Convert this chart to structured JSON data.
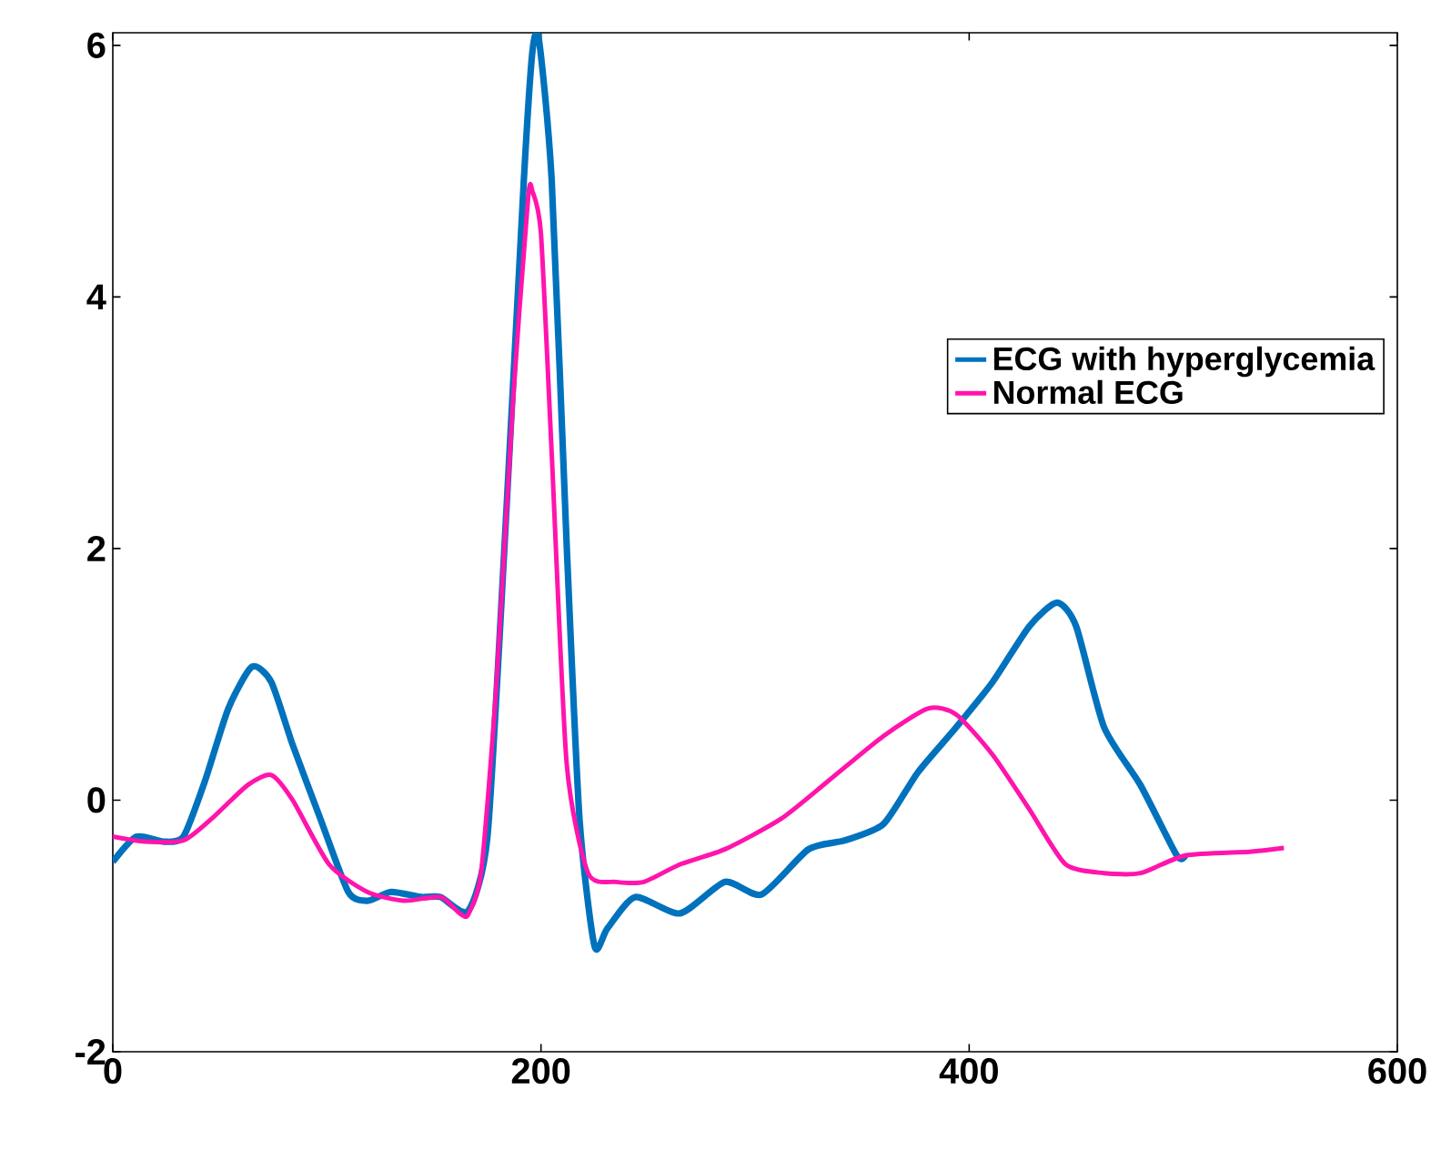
{
  "chart_data": {
    "type": "line",
    "xlim": [
      0,
      600
    ],
    "ylim": [
      -2,
      6.1
    ],
    "xticks": [
      0,
      200,
      400,
      600
    ],
    "yticks": [
      -2,
      0,
      2,
      4,
      6
    ],
    "legend": "right",
    "grid": false,
    "marker": "none",
    "line_style": "solid",
    "series": [
      {
        "name": "ECG with hyperglycemia",
        "color": "#0072bd",
        "x": [
          0,
          11,
          24,
          33,
          43,
          54,
          65,
          74,
          84,
          97,
          110,
          119,
          130,
          144,
          153,
          166,
          175,
          183,
          192,
          196,
          199,
          205,
          212,
          218,
          225,
          231,
          244,
          265,
          286,
          303,
          325,
          342,
          360,
          376,
          394,
          411,
          428,
          441,
          450,
          463,
          480,
          497,
          501
        ],
        "values": [
          -0.49,
          -0.29,
          -0.33,
          -0.29,
          0.15,
          0.73,
          1.06,
          0.94,
          0.44,
          -0.15,
          -0.73,
          -0.8,
          -0.73,
          -0.77,
          -0.77,
          -0.88,
          -0.29,
          2.03,
          4.93,
          5.95,
          6.05,
          4.93,
          2.03,
          -0.15,
          -1.16,
          -1.02,
          -0.77,
          -0.9,
          -0.65,
          -0.75,
          -0.39,
          -0.32,
          -0.19,
          0.22,
          0.58,
          0.94,
          1.38,
          1.57,
          1.38,
          0.58,
          0.12,
          -0.44,
          -0.44
        ]
      },
      {
        "name": "Normal ECG",
        "color": "#ff14ac",
        "x": [
          0,
          15,
          33,
          46,
          63,
          74,
          84,
          101,
          119,
          136,
          153,
          162,
          166,
          172,
          179,
          187,
          194,
          196,
          200,
          205,
          212,
          222,
          235,
          248,
          265,
          286,
          312,
          334,
          360,
          381,
          394,
          411,
          428,
          445,
          463,
          480,
          501,
          531,
          547
        ],
        "values": [
          -0.29,
          -0.33,
          -0.32,
          -0.15,
          0.12,
          0.2,
          0,
          -0.51,
          -0.73,
          -0.8,
          -0.77,
          -0.9,
          -0.91,
          -0.58,
          0.87,
          3.19,
          4.79,
          4.84,
          4.5,
          2.76,
          0.29,
          -0.58,
          -0.65,
          -0.65,
          -0.51,
          -0.39,
          -0.15,
          0.15,
          0.51,
          0.73,
          0.68,
          0.36,
          -0.07,
          -0.51,
          -0.58,
          -0.58,
          -0.44,
          -0.41,
          -0.38
        ]
      }
    ]
  }
}
